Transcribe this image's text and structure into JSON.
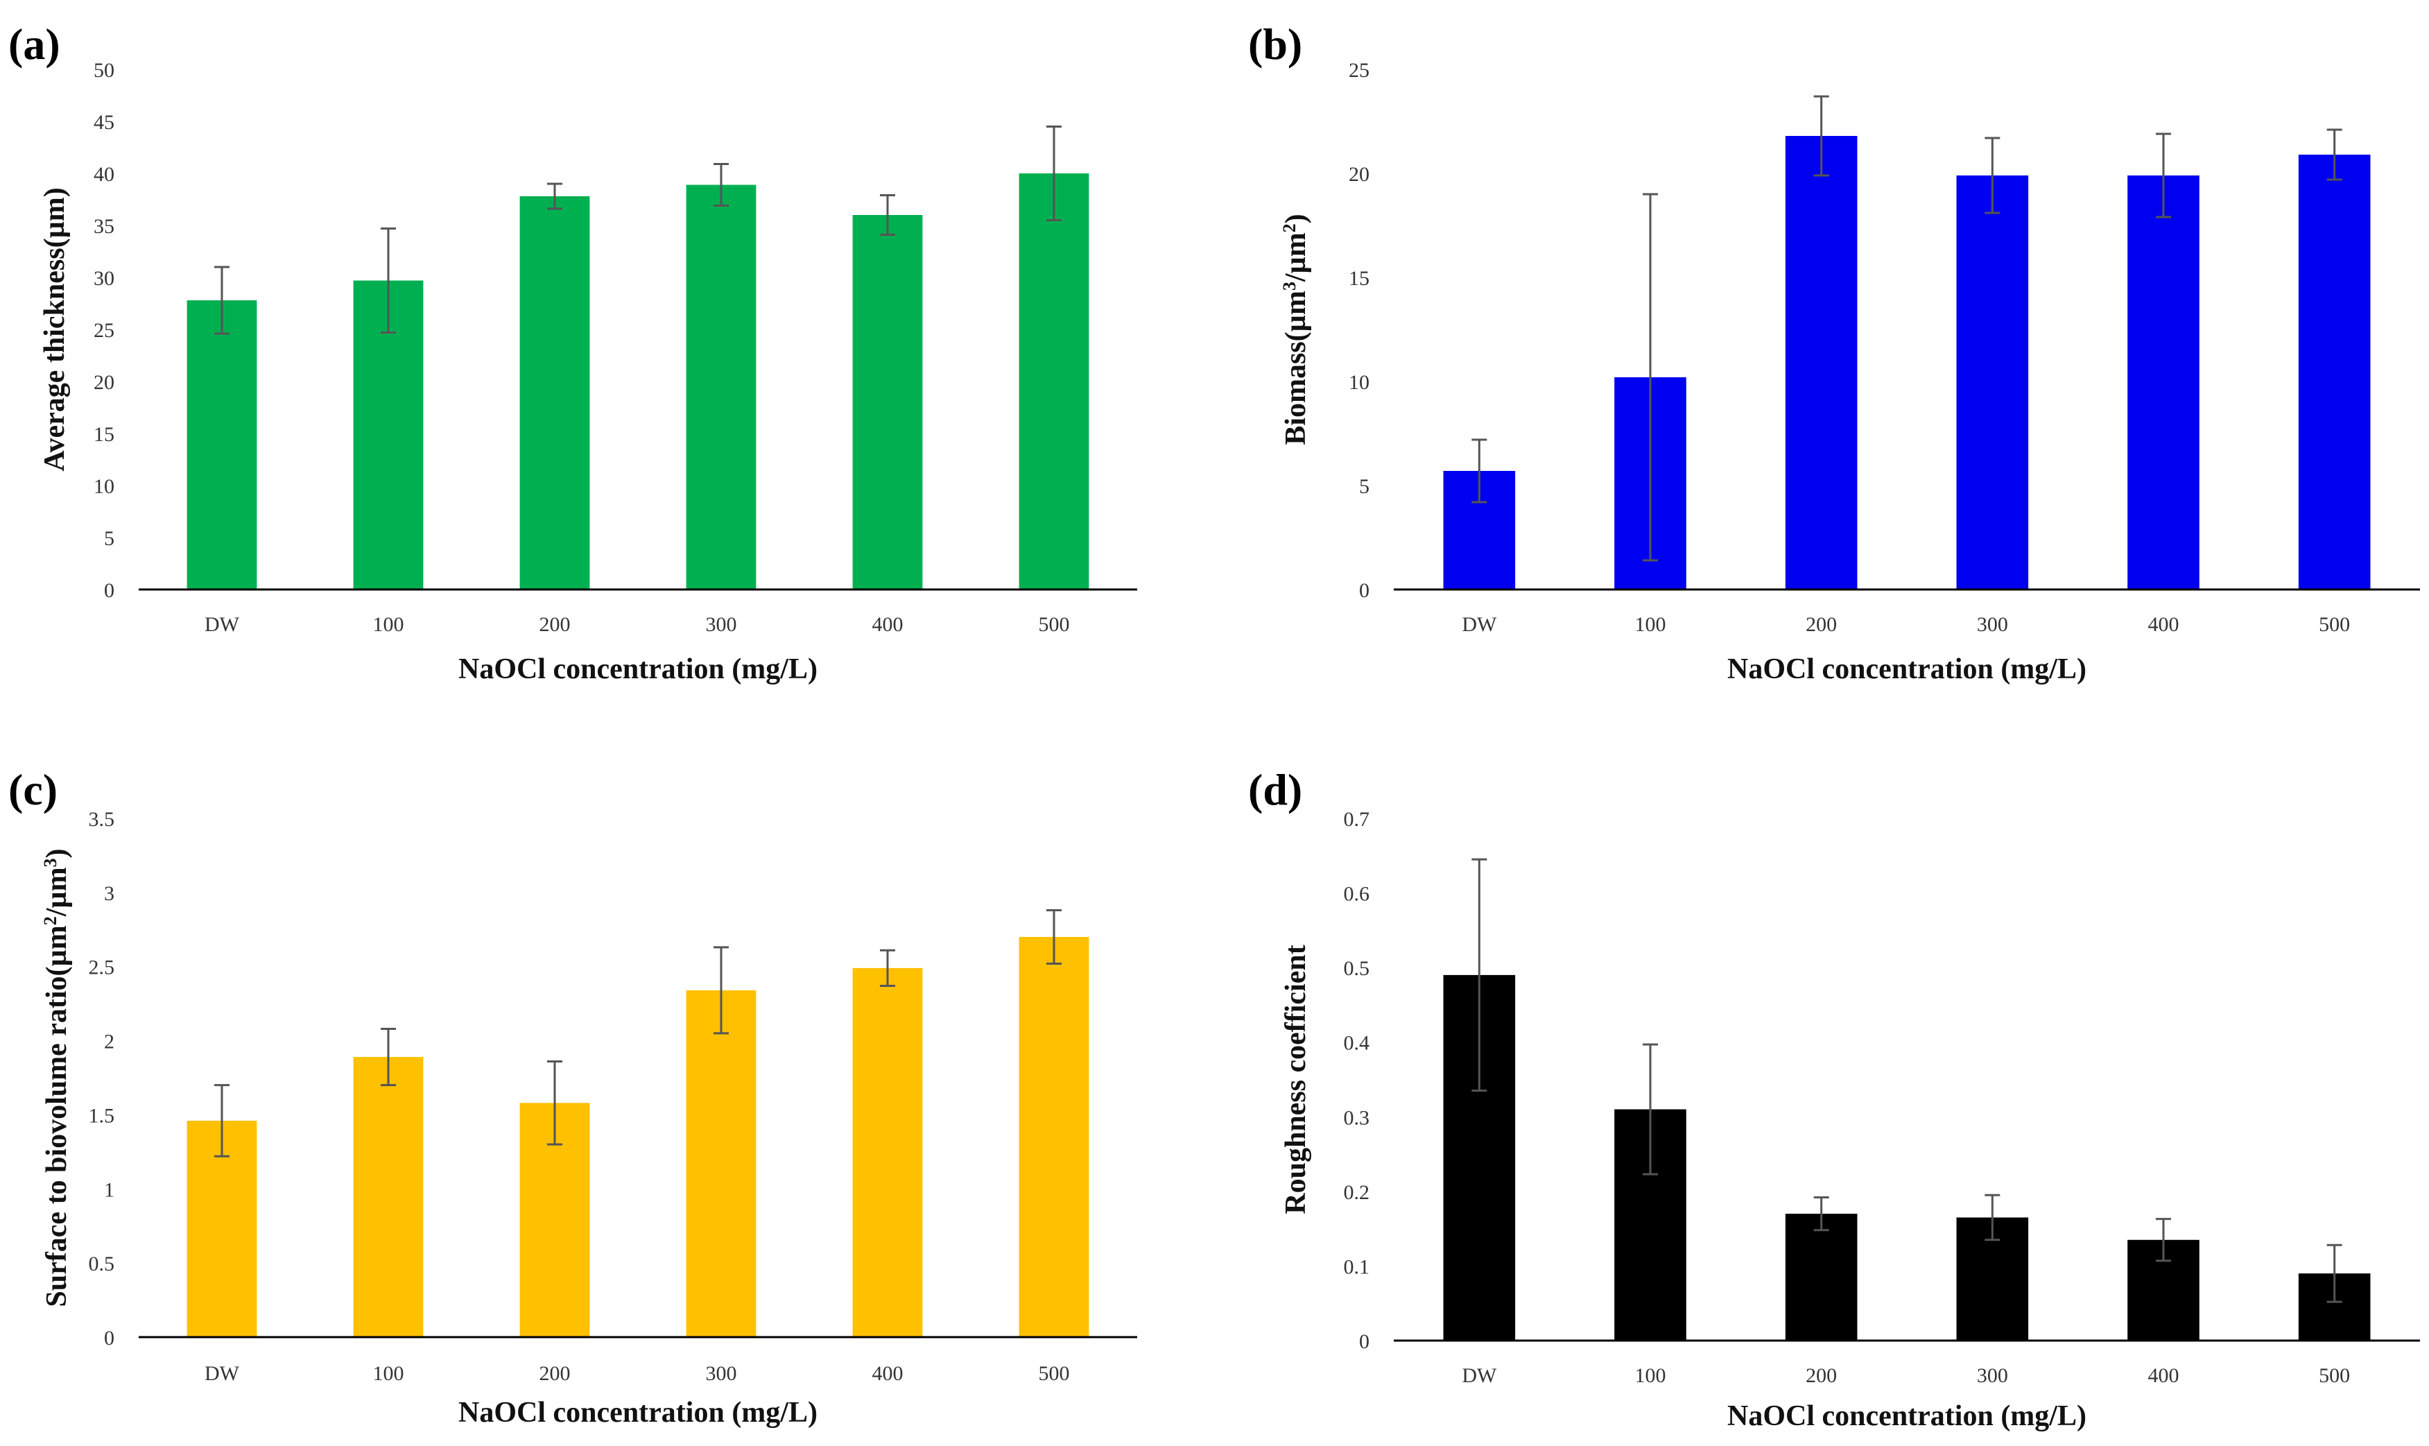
{
  "chart_data": [
    {
      "type": "bar",
      "panel_label": "(a)",
      "categories": [
        "DW",
        "100",
        "200",
        "300",
        "400",
        "500"
      ],
      "values": [
        27.8,
        29.7,
        37.8,
        38.9,
        36.0,
        40.0
      ],
      "errors": [
        3.2,
        5.0,
        1.2,
        2.0,
        1.9,
        4.5
      ],
      "ylabel_parts": [
        {
          "text": "Average thickness(µm)"
        }
      ],
      "xlabel": "NaOCl concentration  (mg/L)",
      "ylim": [
        0,
        50
      ],
      "yticks": [
        0,
        5,
        10,
        15,
        20,
        25,
        30,
        35,
        40,
        45,
        50
      ],
      "ytick_labels": [
        "0",
        "5",
        "10",
        "15",
        "20",
        "25",
        "30",
        "35",
        "40",
        "45",
        "50"
      ],
      "color": "#00B050"
    },
    {
      "type": "bar",
      "panel_label": "(b)",
      "categories": [
        "DW",
        "100",
        "200",
        "300",
        "400",
        "500"
      ],
      "values": [
        5.7,
        10.2,
        21.8,
        19.9,
        19.9,
        20.9
      ],
      "errors": [
        1.5,
        8.8,
        1.9,
        1.8,
        2.0,
        1.2
      ],
      "ylabel_parts": [
        {
          "text": "Biomass(µm"
        },
        {
          "text": "3",
          "sup": true
        },
        {
          "text": "/µm"
        },
        {
          "text": "2",
          "sup": true
        },
        {
          "text": ")"
        }
      ],
      "xlabel": "NaOCl concentration  (mg/L)",
      "ylim": [
        0,
        25
      ],
      "yticks": [
        0,
        5,
        10,
        15,
        20,
        25
      ],
      "ytick_labels": [
        "0",
        "5",
        "10",
        "15",
        "20",
        "25"
      ],
      "color": "#0000F0"
    },
    {
      "type": "bar",
      "panel_label": "(c)",
      "categories": [
        "DW",
        "100",
        "200",
        "300",
        "400",
        "500"
      ],
      "values": [
        1.46,
        1.89,
        1.58,
        2.34,
        2.49,
        2.7
      ],
      "errors": [
        0.24,
        0.19,
        0.28,
        0.29,
        0.12,
        0.18
      ],
      "ylabel_parts": [
        {
          "text": "Surface to biovolume ratio(µm"
        },
        {
          "text": "2",
          "sup": true
        },
        {
          "text": "/µm"
        },
        {
          "text": "3",
          "sup": true
        },
        {
          "text": ")"
        }
      ],
      "xlabel": "NaOCl concentration (mg/L)",
      "ylim": [
        0,
        3.5
      ],
      "yticks": [
        0,
        0.5,
        1,
        1.5,
        2,
        2.5,
        3,
        3.5
      ],
      "ytick_labels": [
        "0",
        "0.5",
        "1",
        "1.5",
        "2",
        "2.5",
        "3",
        "3.5"
      ],
      "color": "#FFC000"
    },
    {
      "type": "bar",
      "panel_label": "(d)",
      "categories": [
        "DW",
        "100",
        "200",
        "300",
        "400",
        "500"
      ],
      "values": [
        0.49,
        0.31,
        0.17,
        0.165,
        0.135,
        0.09
      ],
      "errors": [
        0.155,
        0.087,
        0.022,
        0.03,
        0.028,
        0.038
      ],
      "ylabel_parts": [
        {
          "text": "Roughness coefficient"
        }
      ],
      "xlabel": "NaOCl concentration (mg/L)",
      "ylim": [
        0,
        0.7
      ],
      "yticks": [
        0,
        0.1,
        0.2,
        0.3,
        0.4,
        0.5,
        0.6,
        0.7
      ],
      "ytick_labels": [
        "0",
        "0.1",
        "0.2",
        "0.3",
        "0.4",
        "0.5",
        "0.6",
        "0.7"
      ],
      "color": "#000000"
    }
  ]
}
